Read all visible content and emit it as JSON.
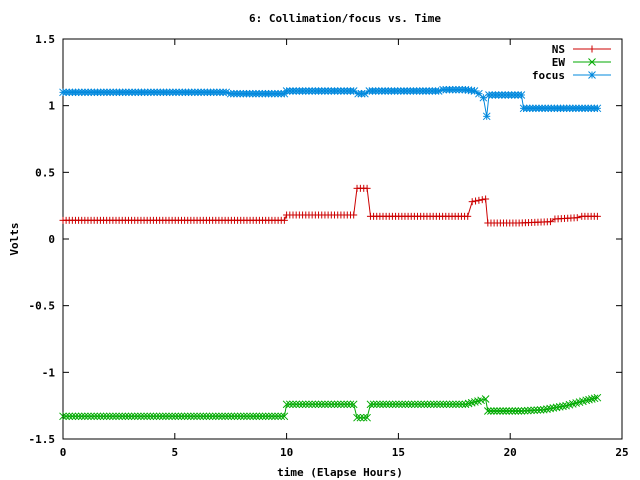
{
  "chart_data": {
    "type": "line",
    "title": "6: Collimation/focus vs. Time",
    "xlabel": "time (Elapse Hours)",
    "ylabel": "Volts",
    "xlim": [
      0,
      25
    ],
    "ylim": [
      -1.5,
      1.5
    ],
    "xticks": [
      0,
      5,
      10,
      15,
      20,
      25
    ],
    "yticks": [
      -1.5,
      -1,
      -0.5,
      0,
      0.5,
      1,
      1.5
    ],
    "grid": false,
    "legend_position": "top-right",
    "series": [
      {
        "name": "NS",
        "color": "#cc0000",
        "marker": "plus",
        "points": [
          [
            0,
            0.14
          ],
          [
            9.9,
            0.14
          ],
          [
            10.0,
            0.18
          ],
          [
            13.0,
            0.18
          ],
          [
            13.15,
            0.38
          ],
          [
            13.6,
            0.38
          ],
          [
            13.75,
            0.17
          ],
          [
            18.1,
            0.17
          ],
          [
            18.3,
            0.28
          ],
          [
            18.9,
            0.3
          ],
          [
            19.0,
            0.12
          ],
          [
            20.4,
            0.12
          ],
          [
            21.8,
            0.13
          ],
          [
            22.0,
            0.15
          ],
          [
            23.0,
            0.16
          ],
          [
            23.2,
            0.17
          ],
          [
            23.9,
            0.17
          ]
        ]
      },
      {
        "name": "EW",
        "color": "#00aa00",
        "marker": "x",
        "points": [
          [
            0,
            -1.33
          ],
          [
            9.9,
            -1.33
          ],
          [
            10.0,
            -1.24
          ],
          [
            13.0,
            -1.24
          ],
          [
            13.15,
            -1.34
          ],
          [
            13.6,
            -1.34
          ],
          [
            13.75,
            -1.24
          ],
          [
            18.0,
            -1.24
          ],
          [
            18.7,
            -1.21
          ],
          [
            18.9,
            -1.2
          ],
          [
            19.0,
            -1.29
          ],
          [
            20.5,
            -1.29
          ],
          [
            21.5,
            -1.28
          ],
          [
            22.5,
            -1.25
          ],
          [
            23.4,
            -1.21
          ],
          [
            23.9,
            -1.19
          ]
        ]
      },
      {
        "name": "focus",
        "color": "#0088dd",
        "marker": "star",
        "points": [
          [
            0,
            1.1
          ],
          [
            7.3,
            1.1
          ],
          [
            7.5,
            1.09
          ],
          [
            9.9,
            1.09
          ],
          [
            10.0,
            1.11
          ],
          [
            13.0,
            1.11
          ],
          [
            13.2,
            1.09
          ],
          [
            13.5,
            1.09
          ],
          [
            13.7,
            1.11
          ],
          [
            16.8,
            1.11
          ],
          [
            17.0,
            1.12
          ],
          [
            18.0,
            1.12
          ],
          [
            18.4,
            1.11
          ],
          [
            18.6,
            1.09
          ],
          [
            18.8,
            1.06
          ],
          [
            18.95,
            0.92
          ],
          [
            19.05,
            1.08
          ],
          [
            20.5,
            1.08
          ],
          [
            20.6,
            0.98
          ],
          [
            23.9,
            0.98
          ]
        ]
      }
    ]
  }
}
